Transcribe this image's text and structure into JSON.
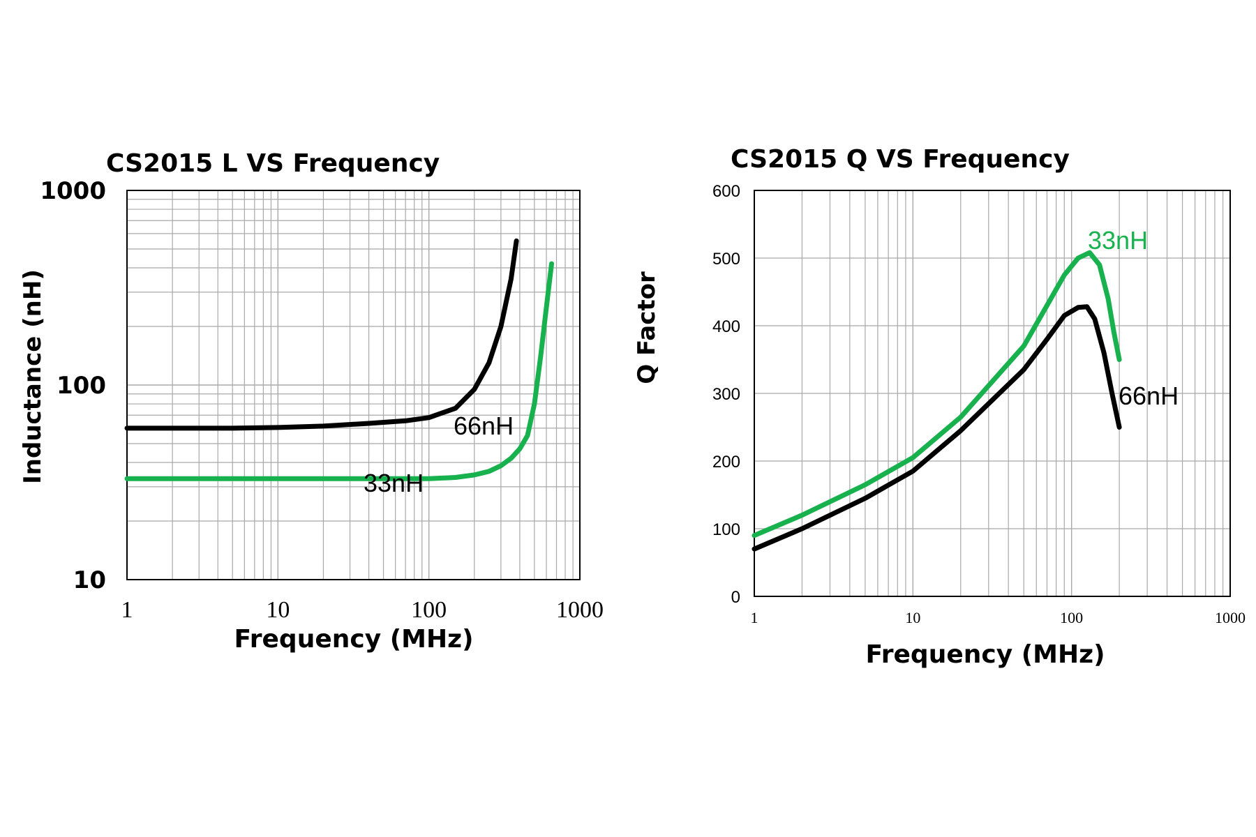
{
  "colors": {
    "series_66nh": "#000000",
    "series_33nh": "#17b14e",
    "grid": "#a8a8a8",
    "axis": "#000000",
    "background": "#ffffff"
  },
  "chart_data": [
    {
      "type": "line",
      "title": "CS2015 L VS Frequency",
      "xlabel": "Frequency (MHz)",
      "ylabel": "Inductance (nH)",
      "xscale": "log",
      "yscale": "log",
      "xlim": [
        1,
        1000
      ],
      "ylim": [
        10,
        1000
      ],
      "xticks": [
        "1",
        "10",
        "100",
        "1000"
      ],
      "yticks": [
        "10",
        "100",
        "1000"
      ],
      "grid": true,
      "series": [
        {
          "name": "66nH",
          "color": "#000000",
          "x": [
            1,
            2,
            5,
            10,
            20,
            40,
            70,
            100,
            150,
            200,
            250,
            300,
            350,
            380
          ],
          "y": [
            60,
            60,
            60,
            60.5,
            61.5,
            63.5,
            65.5,
            68,
            76,
            95,
            130,
            200,
            350,
            550
          ]
        },
        {
          "name": "33nH",
          "color": "#17b14e",
          "x": [
            1,
            10,
            50,
            100,
            150,
            200,
            250,
            300,
            350,
            400,
            450,
            500,
            550,
            600,
            650
          ],
          "y": [
            33,
            33,
            33,
            33,
            33.5,
            34.5,
            36,
            38.5,
            42,
            47,
            55,
            80,
            140,
            250,
            420
          ]
        }
      ],
      "annotations": [
        {
          "text": "66nH",
          "series": "66nH"
        },
        {
          "text": "33nH",
          "series": "33nH"
        }
      ]
    },
    {
      "type": "line",
      "title": "CS2015 Q VS Frequency",
      "xlabel": "Frequency (MHz)",
      "ylabel": "Q Factor",
      "xscale": "log",
      "yscale": "linear",
      "xlim": [
        1,
        1000
      ],
      "ylim": [
        0,
        600
      ],
      "xticks": [
        "1",
        "10",
        "100",
        "1000"
      ],
      "yticks": [
        "0",
        "100",
        "200",
        "300",
        "400",
        "500",
        "600"
      ],
      "grid": true,
      "series": [
        {
          "name": "33nH",
          "color": "#17b14e",
          "x": [
            1,
            2,
            5,
            10,
            20,
            50,
            70,
            90,
            110,
            130,
            150,
            170,
            185,
            200
          ],
          "y": [
            90,
            120,
            165,
            205,
            265,
            370,
            430,
            475,
            500,
            508,
            490,
            440,
            390,
            350
          ]
        },
        {
          "name": "66nH",
          "color": "#000000",
          "x": [
            1,
            2,
            5,
            10,
            20,
            50,
            70,
            90,
            110,
            125,
            140,
            160,
            180,
            200
          ],
          "y": [
            70,
            100,
            145,
            185,
            245,
            335,
            380,
            415,
            427,
            428,
            410,
            360,
            300,
            250
          ]
        }
      ],
      "annotations": [
        {
          "text": "33nH",
          "series": "33nH"
        },
        {
          "text": "66nH",
          "series": "66nH"
        }
      ]
    }
  ]
}
